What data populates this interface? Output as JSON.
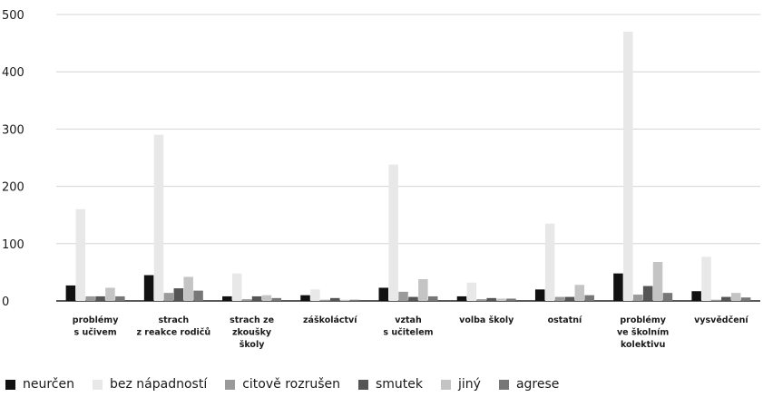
{
  "chart_data": {
    "type": "bar",
    "title": "",
    "xlabel": "",
    "ylabel": "",
    "ylim": [
      0,
      500
    ],
    "yticks": [
      "0",
      "100",
      "200",
      "300",
      "400",
      "500"
    ],
    "grid": true,
    "legend_position": "bottom",
    "categories": [
      [
        "problémy",
        "s učivem"
      ],
      [
        "strach",
        "z reakce rodičů"
      ],
      [
        "strach ze",
        "zkoušky",
        "školy"
      ],
      [
        "záškoláctví"
      ],
      [
        "vztah",
        "s učitelem"
      ],
      [
        "volba školy"
      ],
      [
        "ostatní"
      ],
      [
        "problémy",
        "ve školním",
        "kolektivu"
      ],
      [
        "vysvědčení"
      ]
    ],
    "series": [
      {
        "name": "neurčen",
        "color": "#111111",
        "values": [
          27,
          45,
          8,
          10,
          23,
          8,
          20,
          48,
          17
        ]
      },
      {
        "name": "bez nápadností",
        "color": "#e8e8e8",
        "values": [
          160,
          290,
          48,
          20,
          238,
          32,
          135,
          470,
          77
        ]
      },
      {
        "name": "citově rozrušen",
        "color": "#9a9a9a",
        "values": [
          8,
          14,
          3,
          2,
          16,
          3,
          7,
          11,
          2
        ]
      },
      {
        "name": "smutek",
        "color": "#555555",
        "values": [
          8,
          22,
          8,
          5,
          7,
          5,
          7,
          26,
          7
        ]
      },
      {
        "name": "jiný",
        "color": "#c4c4c4",
        "values": [
          23,
          42,
          10,
          2,
          38,
          4,
          28,
          68,
          14
        ]
      },
      {
        "name": "agrese",
        "color": "#777777",
        "values": [
          8,
          18,
          5,
          2,
          8,
          4,
          10,
          14,
          6
        ]
      }
    ]
  }
}
